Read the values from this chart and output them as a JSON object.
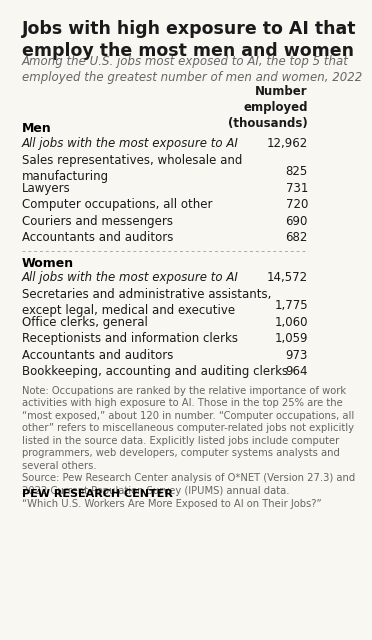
{
  "title_line1": "Jobs with high exposure to AI that",
  "title_line2": "employ the most men and women",
  "subtitle_line1": "Among the U.S. jobs most exposed to AI, the top 5 that",
  "subtitle_line2": "employed the greatest number of men and women, 2022",
  "col_header_line1": "Number",
  "col_header_line2": "employed",
  "col_header_line3": "(thousands)",
  "sections": [
    {
      "section_label": "Men",
      "rows": [
        {
          "label": "All jobs with the most exposure to AI",
          "value": "12,962",
          "italic": true,
          "two_line": false
        },
        {
          "label": "Sales representatives, wholesale and\nmanufacturing",
          "value": "825",
          "italic": false,
          "two_line": true
        },
        {
          "label": "Lawyers",
          "value": "731",
          "italic": false,
          "two_line": false
        },
        {
          "label": "Computer occupations, all other",
          "value": "720",
          "italic": false,
          "two_line": false
        },
        {
          "label": "Couriers and messengers",
          "value": "690",
          "italic": false,
          "two_line": false
        },
        {
          "label": "Accountants and auditors",
          "value": "682",
          "italic": false,
          "two_line": false
        }
      ]
    },
    {
      "section_label": "Women",
      "rows": [
        {
          "label": "All jobs with the most exposure to AI",
          "value": "14,572",
          "italic": true,
          "two_line": false
        },
        {
          "label": "Secretaries and administrative assistants,\nexcept legal, medical and executive",
          "value": "1,775",
          "italic": false,
          "two_line": true
        },
        {
          "label": "Office clerks, general",
          "value": "1,060",
          "italic": false,
          "two_line": false
        },
        {
          "label": "Receptionists and information clerks",
          "value": "1,059",
          "italic": false,
          "two_line": false
        },
        {
          "label": "Accountants and auditors",
          "value": "973",
          "italic": false,
          "two_line": false
        },
        {
          "label": "Bookkeeping, accounting and auditing clerks",
          "value": "964",
          "italic": false,
          "two_line": false
        }
      ]
    }
  ],
  "note_lines": [
    "Note: Occupations are ranked by the relative importance of work",
    "activities with high exposure to AI. Those in the top 25% are the",
    "“most exposed,” about 120 in number. “Computer occupations, all",
    "other” refers to miscellaneous computer-related jobs not explicitly",
    "listed in the source data. Explicitly listed jobs include computer",
    "programmers, web developers, computer systems analysts and",
    "several others.",
    "Source: Pew Research Center analysis of O*NET (Version 27.3) and",
    "2022 Current Population Survey (IPUMS) annual data.",
    "“Which U.S. Workers Are More Exposed to AI on Their Jobs?”"
  ],
  "footer": "PEW RESEARCH CENTER",
  "bg_color": "#f9f7f2",
  "title_color": "#1a1a1a",
  "subtitle_color": "#666666",
  "section_color": "#000000",
  "row_color": "#1a1a1a",
  "value_color": "#1a1a1a",
  "note_color": "#666666",
  "footer_color": "#000000",
  "divider_color": "#aaaaaa",
  "title_fontsize": 12.5,
  "subtitle_fontsize": 8.5,
  "header_fontsize": 8.5,
  "section_fontsize": 9.0,
  "row_fontsize": 8.5,
  "note_fontsize": 7.2,
  "footer_fontsize": 8.0
}
